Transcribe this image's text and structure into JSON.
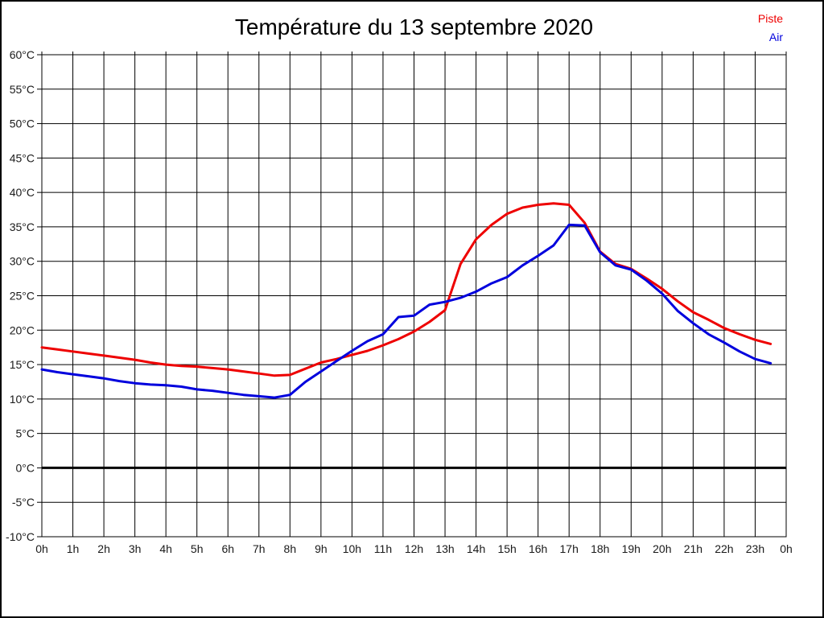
{
  "title": "Température du 13 septembre 2020",
  "legend": [
    {
      "label": "Piste",
      "color": "#ee0000"
    },
    {
      "label": "Air",
      "color": "#0000dd"
    }
  ],
  "colors": {
    "grid": "#000000",
    "axis_text": "#1a1a1a",
    "background": "#ffffff",
    "zero_line": "#000000"
  },
  "chart_data": {
    "type": "line",
    "title": "Température du 13 septembre 2020",
    "xlabel": "",
    "ylabel": "",
    "xlim": [
      0,
      24
    ],
    "ylim": [
      -10,
      60
    ],
    "grid": true,
    "legend_position": "top-right",
    "zero_line_value": 0,
    "x_ticks": [
      {
        "value": 0,
        "label": "0h"
      },
      {
        "value": 1,
        "label": "1h"
      },
      {
        "value": 2,
        "label": "2h"
      },
      {
        "value": 3,
        "label": "3h"
      },
      {
        "value": 4,
        "label": "4h"
      },
      {
        "value": 5,
        "label": "5h"
      },
      {
        "value": 6,
        "label": "6h"
      },
      {
        "value": 7,
        "label": "7h"
      },
      {
        "value": 8,
        "label": "8h"
      },
      {
        "value": 9,
        "label": "9h"
      },
      {
        "value": 10,
        "label": "10h"
      },
      {
        "value": 11,
        "label": "11h"
      },
      {
        "value": 12,
        "label": "12h"
      },
      {
        "value": 13,
        "label": "13h"
      },
      {
        "value": 14,
        "label": "14h"
      },
      {
        "value": 15,
        "label": "15h"
      },
      {
        "value": 16,
        "label": "16h"
      },
      {
        "value": 17,
        "label": "17h"
      },
      {
        "value": 18,
        "label": "18h"
      },
      {
        "value": 19,
        "label": "19h"
      },
      {
        "value": 20,
        "label": "20h"
      },
      {
        "value": 21,
        "label": "21h"
      },
      {
        "value": 22,
        "label": "22h"
      },
      {
        "value": 23,
        "label": "23h"
      },
      {
        "value": 24,
        "label": "0h"
      }
    ],
    "y_ticks": [
      {
        "value": 60,
        "label": "60°C"
      },
      {
        "value": 55,
        "label": "55°C"
      },
      {
        "value": 50,
        "label": "50°C"
      },
      {
        "value": 45,
        "label": "45°C"
      },
      {
        "value": 40,
        "label": "40°C"
      },
      {
        "value": 35,
        "label": "35°C"
      },
      {
        "value": 30,
        "label": "30°C"
      },
      {
        "value": 25,
        "label": "25°C"
      },
      {
        "value": 20,
        "label": "20°C"
      },
      {
        "value": 15,
        "label": "15°C"
      },
      {
        "value": 10,
        "label": "10°C"
      },
      {
        "value": 5,
        "label": "5°C"
      },
      {
        "value": 0,
        "label": "0°C"
      },
      {
        "value": -5,
        "label": "-5°C"
      },
      {
        "value": -10,
        "label": "-10°C"
      }
    ],
    "x": [
      0,
      0.5,
      1,
      1.5,
      2,
      2.5,
      3,
      3.5,
      4,
      4.5,
      5,
      5.5,
      6,
      6.5,
      7,
      7.5,
      8,
      8.5,
      9,
      9.5,
      10,
      10.5,
      11,
      11.5,
      12,
      12.5,
      13,
      13.5,
      14,
      14.5,
      15,
      15.5,
      16,
      16.5,
      17,
      17.5,
      18,
      18.5,
      19,
      19.5,
      20,
      20.5,
      21,
      21.5,
      22,
      22.5,
      23,
      23.5
    ],
    "series": [
      {
        "name": "Piste",
        "color": "#ee0000",
        "values": [
          17.5,
          17.2,
          16.9,
          16.6,
          16.3,
          16.0,
          15.7,
          15.3,
          15.0,
          14.8,
          14.7,
          14.5,
          14.3,
          14.0,
          13.7,
          13.4,
          13.5,
          14.4,
          15.3,
          15.8,
          16.4,
          17.0,
          17.8,
          18.7,
          19.8,
          21.2,
          22.9,
          29.6,
          33.2,
          35.3,
          36.9,
          37.8,
          38.2,
          38.4,
          38.2,
          35.6,
          31.4,
          29.6,
          28.9,
          27.5,
          26.0,
          24.2,
          22.6,
          21.5,
          20.3,
          19.4,
          18.6,
          18.0
        ]
      },
      {
        "name": "Air",
        "color": "#0000dd",
        "values": [
          14.3,
          13.9,
          13.6,
          13.3,
          13.0,
          12.6,
          12.3,
          12.1,
          12.0,
          11.8,
          11.4,
          11.2,
          10.9,
          10.6,
          10.4,
          10.2,
          10.6,
          12.5,
          14.0,
          15.5,
          17.0,
          18.4,
          19.4,
          21.9,
          22.1,
          23.7,
          24.1,
          24.7,
          25.6,
          26.8,
          27.7,
          29.4,
          30.8,
          32.3,
          35.3,
          35.2,
          31.3,
          29.4,
          28.8,
          27.2,
          25.3,
          22.8,
          21.0,
          19.4,
          18.2,
          16.9,
          15.8,
          15.2
        ]
      }
    ]
  }
}
